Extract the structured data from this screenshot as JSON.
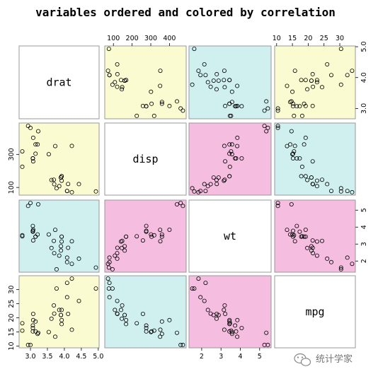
{
  "title": "variables ordered and colored by correlation",
  "watermark": {
    "text": "统计学家",
    "icon": "wechat-icon"
  },
  "chart_data": {
    "type": "scatter",
    "variables": [
      "drat",
      "disp",
      "wt",
      "mpg"
    ],
    "ranges": {
      "drat": [
        2.76,
        4.93
      ],
      "disp": [
        71.1,
        472
      ],
      "wt": [
        1.513,
        5.424
      ],
      "mpg": [
        10.4,
        33.9
      ]
    },
    "ticks": {
      "drat": [
        "3.0",
        "3.5",
        "4.0",
        "4.5",
        "5.0"
      ],
      "disp": [
        "100",
        "200",
        "300",
        "400"
      ],
      "wt": [
        "2",
        "3",
        "4",
        "5"
      ],
      "mpg": [
        "10",
        "15",
        "20",
        "25",
        "30"
      ]
    },
    "side_ticks": {
      "drat": [
        "3.0",
        "4.0",
        "5.0"
      ],
      "disp": [
        "100",
        "300"
      ],
      "wt": [
        "2",
        "3",
        "4",
        "5"
      ],
      "mpg": [
        "10",
        "15",
        "20",
        "25",
        "30"
      ]
    },
    "panel_colors": {
      "high": "#f5bde0",
      "mid": "#d0f0f0",
      "low": "#fbfbd2",
      "diagonal": "#ffffff"
    },
    "panel_color_by_pair": {
      "drat-disp": "low",
      "drat-wt": "mid",
      "drat-mpg": "low",
      "disp-wt": "high",
      "disp-mpg": "mid",
      "wt-mpg": "high"
    },
    "observations": [
      {
        "mpg": 21.0,
        "disp": 160.0,
        "drat": 3.9,
        "wt": 2.62
      },
      {
        "mpg": 21.0,
        "disp": 160.0,
        "drat": 3.9,
        "wt": 2.875
      },
      {
        "mpg": 22.8,
        "disp": 108.0,
        "drat": 3.85,
        "wt": 2.32
      },
      {
        "mpg": 21.4,
        "disp": 258.0,
        "drat": 3.08,
        "wt": 3.215
      },
      {
        "mpg": 18.7,
        "disp": 360.0,
        "drat": 3.15,
        "wt": 3.44
      },
      {
        "mpg": 18.1,
        "disp": 225.0,
        "drat": 2.76,
        "wt": 3.46
      },
      {
        "mpg": 14.3,
        "disp": 360.0,
        "drat": 3.21,
        "wt": 3.57
      },
      {
        "mpg": 24.4,
        "disp": 146.7,
        "drat": 3.69,
        "wt": 3.19
      },
      {
        "mpg": 22.8,
        "disp": 140.8,
        "drat": 3.92,
        "wt": 3.15
      },
      {
        "mpg": 19.2,
        "disp": 167.6,
        "drat": 3.92,
        "wt": 3.44
      },
      {
        "mpg": 17.8,
        "disp": 167.6,
        "drat": 3.92,
        "wt": 3.44
      },
      {
        "mpg": 16.4,
        "disp": 275.8,
        "drat": 3.07,
        "wt": 4.07
      },
      {
        "mpg": 17.3,
        "disp": 275.8,
        "drat": 3.07,
        "wt": 3.73
      },
      {
        "mpg": 15.2,
        "disp": 275.8,
        "drat": 3.07,
        "wt": 3.78
      },
      {
        "mpg": 10.4,
        "disp": 472.0,
        "drat": 2.93,
        "wt": 5.25
      },
      {
        "mpg": 10.4,
        "disp": 460.0,
        "drat": 3.0,
        "wt": 5.424
      },
      {
        "mpg": 14.7,
        "disp": 440.0,
        "drat": 3.23,
        "wt": 5.345
      },
      {
        "mpg": 32.4,
        "disp": 78.7,
        "drat": 4.08,
        "wt": 2.2
      },
      {
        "mpg": 30.4,
        "disp": 75.7,
        "drat": 4.93,
        "wt": 1.615
      },
      {
        "mpg": 33.9,
        "disp": 71.1,
        "drat": 4.22,
        "wt": 1.835
      },
      {
        "mpg": 21.5,
        "disp": 120.1,
        "drat": 3.7,
        "wt": 2.465
      },
      {
        "mpg": 15.5,
        "disp": 318.0,
        "drat": 2.76,
        "wt": 3.52
      },
      {
        "mpg": 15.2,
        "disp": 304.0,
        "drat": 3.15,
        "wt": 3.435
      },
      {
        "mpg": 13.3,
        "disp": 350.0,
        "drat": 3.73,
        "wt": 3.84
      },
      {
        "mpg": 19.2,
        "disp": 400.0,
        "drat": 3.08,
        "wt": 3.845
      },
      {
        "mpg": 27.3,
        "disp": 79.0,
        "drat": 4.08,
        "wt": 1.935
      },
      {
        "mpg": 26.0,
        "disp": 120.3,
        "drat": 4.43,
        "wt": 2.14
      },
      {
        "mpg": 30.4,
        "disp": 95.1,
        "drat": 3.77,
        "wt": 1.513
      },
      {
        "mpg": 15.8,
        "disp": 351.0,
        "drat": 4.22,
        "wt": 3.17
      },
      {
        "mpg": 19.7,
        "disp": 145.0,
        "drat": 3.62,
        "wt": 2.77
      },
      {
        "mpg": 15.0,
        "disp": 301.0,
        "drat": 3.54,
        "wt": 3.57
      },
      {
        "mpg": 21.4,
        "disp": 121.0,
        "drat": 4.11,
        "wt": 2.78
      }
    ]
  }
}
